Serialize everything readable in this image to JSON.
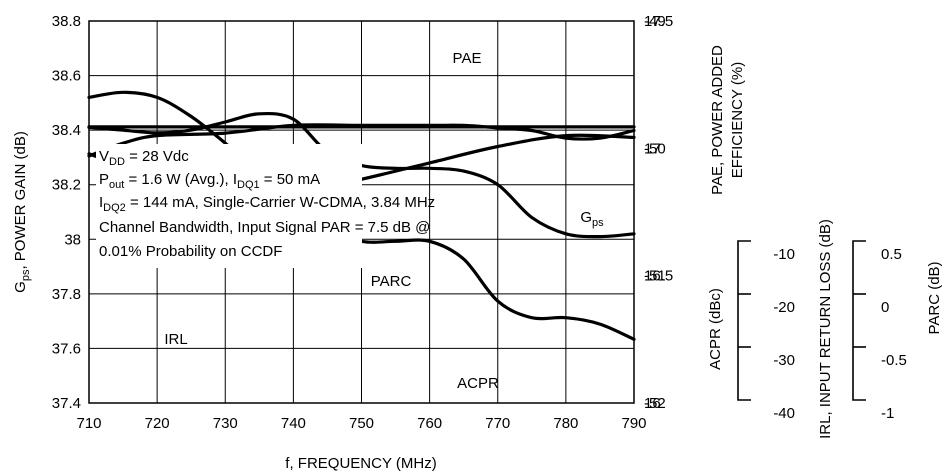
{
  "chart_data": {
    "type": "line",
    "xlabel": "f, FREQUENCY (MHz)",
    "xlim": [
      710,
      790
    ],
    "x_ticks": [
      "710",
      "720",
      "730",
      "740",
      "750",
      "760",
      "770",
      "780",
      "790"
    ],
    "ylabel_left": {
      "main": "G",
      "sub": "ps",
      "rest": ", POWER GAIN (dB)"
    },
    "ylim_left": [
      37.4,
      38.8
    ],
    "left_ticks": [
      "37.4",
      "37.6",
      "37.8",
      "38",
      "38.2",
      "38.4",
      "38.6",
      "38.8"
    ],
    "right_axes": [
      {
        "title_line1": "PAE, POWER ADDED",
        "title_line2": "EFFICIENCY (%)",
        "range": [
          16,
          17.5
        ],
        "ticks": [
          "16",
          "16.5",
          "17",
          "17.5"
        ]
      },
      {
        "title": "ACPR (dBc)",
        "range": [
          -52,
          -49
        ],
        "ticks": [
          "-49",
          "-50",
          "-51",
          "-52"
        ]
      },
      {
        "title": "IRL, INPUT RETURN LOSS (dB)",
        "range": [
          -40,
          -10
        ],
        "ticks": [
          "-10",
          "-20",
          "-30",
          "-40"
        ]
      },
      {
        "title": "PARC (dB)",
        "range": [
          -1,
          0.5
        ],
        "ticks": [
          "0.5",
          "0",
          "-0.5",
          "-1"
        ]
      }
    ],
    "conditions": {
      "line1": {
        "a": "V",
        "a_sub": "DD",
        "b": " = 28 Vdc"
      },
      "line2": {
        "a": "P",
        "a_sub": "out",
        "b": " = 1.6 W (Avg.), I",
        "b_sub": "DQ1",
        "c": " = 50 mA"
      },
      "line3": {
        "a": "I",
        "a_sub": "DQ2",
        "b": " = 144 mA, Single-Carrier W-CDMA, 3.84 MHz"
      },
      "line4": "Channel Bandwidth, Input Signal PAR = 7.5 dB @",
      "line5": "0.01% Probability on CCDF"
    },
    "series": [
      {
        "name": "PAE",
        "axis": "PAE, POWER ADDED EFFICIENCY (%)",
        "x": [
          710,
          715,
          720,
          730,
          740,
          750,
          760,
          765,
          770,
          775,
          780,
          785,
          790
        ],
        "y": [
          16.97,
          17.02,
          17.05,
          17.06,
          17.09,
          17.09,
          17.09,
          17.09,
          17.08,
          17.07,
          17.04,
          17.04,
          17.07
        ]
      },
      {
        "name": "G",
        "name_sub": "ps",
        "axis": "Gps, POWER GAIN (dB)",
        "x": [
          710,
          715,
          720,
          725,
          730,
          735,
          740,
          745,
          750,
          755,
          760,
          765,
          770,
          775,
          780,
          785,
          790
        ],
        "y": [
          38.41,
          38.4,
          38.39,
          38.4,
          38.43,
          38.46,
          38.44,
          38.32,
          38.27,
          38.26,
          38.26,
          38.25,
          38.2,
          38.08,
          38.02,
          38.01,
          38.02
        ]
      },
      {
        "name": "PARC",
        "axis": "PARC (dB)",
        "x": [
          710,
          720,
          730,
          740,
          750,
          760,
          770,
          780,
          790
        ],
        "y": [
          -0.01,
          -0.01,
          -0.01,
          -0.01,
          -0.01,
          -0.01,
          -0.01,
          -0.01,
          -0.01
        ]
      },
      {
        "name": "ACPR",
        "axis": "ACPR (dBc)",
        "x": [
          710,
          715,
          720,
          725,
          730,
          735,
          740,
          745,
          750,
          755,
          760,
          765,
          770,
          775,
          780,
          785,
          790
        ],
        "y": [
          -49.6,
          -49.56,
          -49.6,
          -49.75,
          -49.96,
          -50.2,
          -50.42,
          -50.62,
          -50.73,
          -50.73,
          -50.73,
          -50.87,
          -51.2,
          -51.33,
          -51.33,
          -51.38,
          -51.5
        ]
      },
      {
        "name": "IRL",
        "axis": "IRL, INPUT RETURN LOSS (dB)",
        "x": [
          710,
          720,
          730,
          740,
          750,
          760,
          770,
          780,
          790
        ],
        "y": [
          -21.3,
          -22.6,
          -23.4,
          -23.5,
          -22.7,
          -21.8,
          -20.9,
          -20.3,
          -20.4
        ]
      }
    ]
  }
}
